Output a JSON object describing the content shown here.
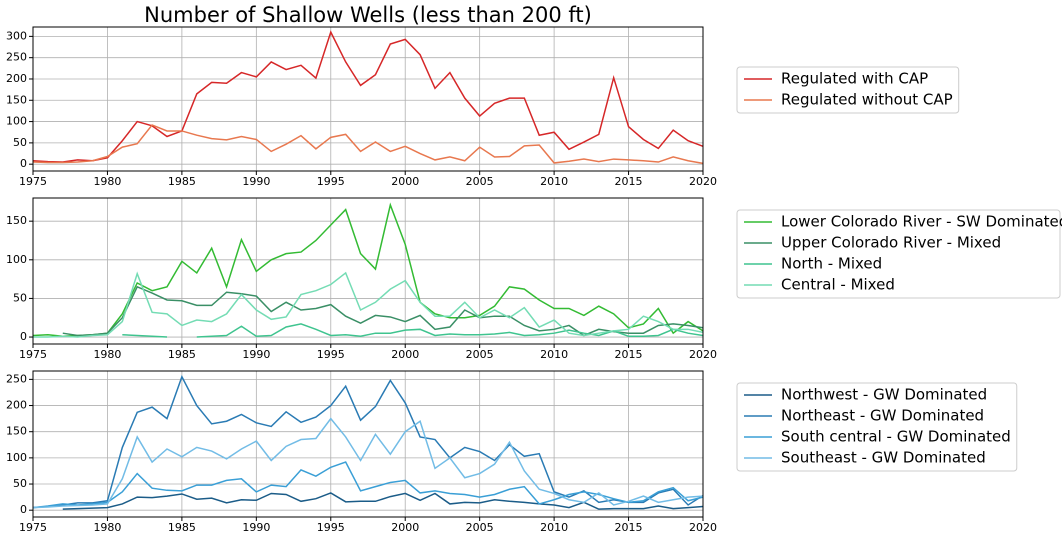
{
  "chart_data": [
    {
      "type": "line",
      "title": "Number of Shallow Wells (less than 200 ft)",
      "legend": "right",
      "grid": true,
      "x": [
        1975,
        1976,
        1977,
        1978,
        1979,
        1980,
        1981,
        1982,
        1983,
        1984,
        1985,
        1986,
        1987,
        1988,
        1989,
        1990,
        1991,
        1992,
        1993,
        1994,
        1995,
        1996,
        1997,
        1998,
        1999,
        2000,
        2001,
        2002,
        2003,
        2004,
        2005,
        2006,
        2007,
        2008,
        2009,
        2010,
        2011,
        2012,
        2013,
        2014,
        2015,
        2016,
        2017,
        2018,
        2019,
        2020
      ],
      "xlim": [
        1975,
        2020
      ],
      "xticks": [
        1975,
        1980,
        1985,
        1990,
        1995,
        2000,
        2005,
        2010,
        2015,
        2020
      ],
      "ylim": [
        -16,
        322
      ],
      "yticks": [
        0,
        50,
        100,
        150,
        200,
        250,
        300
      ],
      "series": [
        {
          "name": "Regulated with CAP",
          "color": "#d62728",
          "values": [
            8,
            6,
            5,
            10,
            8,
            15,
            55,
            100,
            90,
            65,
            78,
            165,
            192,
            190,
            215,
            205,
            240,
            222,
            232,
            202,
            310,
            240,
            185,
            210,
            282,
            293,
            257,
            178,
            215,
            155,
            113,
            143,
            155,
            155,
            68,
            75,
            35,
            52,
            70,
            203,
            88,
            58,
            37,
            80,
            55,
            42
          ]
        },
        {
          "name": "Regulated without CAP",
          "color": "#e8784f",
          "values": [
            5,
            4,
            4,
            5,
            8,
            18,
            40,
            48,
            92,
            78,
            78,
            68,
            60,
            57,
            65,
            58,
            30,
            47,
            67,
            36,
            63,
            70,
            30,
            52,
            30,
            42,
            25,
            10,
            17,
            8,
            40,
            17,
            18,
            43,
            45,
            3,
            7,
            12,
            6,
            12,
            10,
            8,
            5,
            17,
            8,
            2
          ]
        }
      ]
    },
    {
      "type": "line",
      "legend": "right",
      "grid": true,
      "x": [
        1975,
        1976,
        1977,
        1978,
        1979,
        1980,
        1981,
        1982,
        1983,
        1984,
        1985,
        1986,
        1987,
        1988,
        1989,
        1990,
        1991,
        1992,
        1993,
        1994,
        1995,
        1996,
        1997,
        1998,
        1999,
        2000,
        2001,
        2002,
        2003,
        2004,
        2005,
        2006,
        2007,
        2008,
        2009,
        2010,
        2011,
        2012,
        2013,
        2014,
        2015,
        2016,
        2017,
        2018,
        2019,
        2020
      ],
      "xlim": [
        1975,
        2020
      ],
      "xticks": [
        1975,
        1980,
        1985,
        1990,
        1995,
        2000,
        2005,
        2010,
        2015,
        2020
      ],
      "ylim": [
        -9,
        180
      ],
      "yticks": [
        0,
        50,
        100,
        150
      ],
      "series": [
        {
          "name": "Lower Colorado River - SW Dominated",
          "color": "#33bb33",
          "values": [
            2,
            3,
            1,
            2,
            3,
            5,
            30,
            70,
            60,
            65,
            98,
            83,
            115,
            65,
            126,
            85,
            100,
            108,
            110,
            125,
            145,
            165,
            108,
            88,
            171,
            120,
            45,
            30,
            25,
            25,
            28,
            40,
            65,
            62,
            48,
            37,
            37,
            28,
            40,
            30,
            12,
            17,
            37,
            5,
            20,
            8
          ]
        },
        {
          "name": "Upper Colorado River - Mixed",
          "color": "#3a8f66",
          "values": [
            null,
            null,
            5,
            2,
            3,
            5,
            25,
            65,
            57,
            48,
            47,
            41,
            41,
            58,
            56,
            53,
            33,
            45,
            35,
            37,
            42,
            27,
            18,
            28,
            26,
            20,
            28,
            10,
            13,
            35,
            25,
            27,
            27,
            15,
            8,
            10,
            15,
            2,
            10,
            7,
            5,
            5,
            15,
            17,
            15,
            12
          ]
        },
        {
          "name": "North - Mixed",
          "color": "#3fc48f",
          "values": [
            null,
            null,
            null,
            null,
            null,
            null,
            3,
            2,
            1,
            0,
            null,
            0,
            1,
            2,
            14,
            1,
            2,
            13,
            17,
            10,
            2,
            3,
            1,
            5,
            5,
            9,
            10,
            2,
            4,
            3,
            3,
            4,
            6,
            2,
            3,
            5,
            9,
            5,
            2,
            8,
            1,
            1,
            2,
            10,
            5,
            2
          ]
        },
        {
          "name": "Central - Mixed",
          "color": "#74dcb4",
          "values": [
            0,
            0,
            1,
            0,
            2,
            3,
            20,
            82,
            32,
            30,
            15,
            22,
            20,
            30,
            55,
            35,
            23,
            26,
            55,
            60,
            68,
            83,
            35,
            45,
            62,
            73,
            45,
            27,
            27,
            45,
            25,
            35,
            25,
            38,
            13,
            22,
            5,
            2,
            5,
            8,
            10,
            27,
            20,
            10,
            10,
            6
          ]
        }
      ]
    },
    {
      "type": "line",
      "legend": "right",
      "grid": true,
      "x": [
        1975,
        1976,
        1977,
        1978,
        1979,
        1980,
        1981,
        1982,
        1983,
        1984,
        1985,
        1986,
        1987,
        1988,
        1989,
        1990,
        1991,
        1992,
        1993,
        1994,
        1995,
        1996,
        1997,
        1998,
        1999,
        2000,
        2001,
        2002,
        2003,
        2004,
        2005,
        2006,
        2007,
        2008,
        2009,
        2010,
        2011,
        2012,
        2013,
        2014,
        2015,
        2016,
        2017,
        2018,
        2019,
        2020
      ],
      "xlim": [
        1975,
        2020
      ],
      "xticks": [
        1975,
        1980,
        1985,
        1990,
        1995,
        2000,
        2005,
        2010,
        2015,
        2020
      ],
      "ylim": [
        -13,
        266
      ],
      "yticks": [
        0,
        50,
        100,
        150,
        200,
        250
      ],
      "series": [
        {
          "name": "Northwest - GW Dominated",
          "color": "#1b5c88",
          "values": [
            null,
            null,
            2,
            3,
            4,
            5,
            12,
            25,
            24,
            27,
            31,
            21,
            23,
            14,
            20,
            19,
            32,
            30,
            17,
            22,
            33,
            16,
            17,
            17,
            26,
            32,
            19,
            32,
            12,
            15,
            14,
            20,
            17,
            15,
            12,
            10,
            5,
            15,
            2,
            3,
            3,
            3,
            8,
            3,
            5,
            7
          ]
        },
        {
          "name": "Northeast - GW Dominated",
          "color": "#2a7bb4",
          "values": [
            5,
            7,
            10,
            14,
            14,
            18,
            120,
            187,
            197,
            175,
            255,
            200,
            165,
            170,
            183,
            167,
            160,
            188,
            168,
            178,
            200,
            237,
            172,
            198,
            248,
            205,
            140,
            135,
            100,
            120,
            112,
            95,
            125,
            103,
            108,
            35,
            25,
            37,
            15,
            20,
            15,
            15,
            33,
            40,
            10,
            28
          ]
        },
        {
          "name": "South central - GW Dominated",
          "color": "#3a9fd6",
          "values": [
            5,
            8,
            12,
            10,
            12,
            15,
            35,
            70,
            42,
            38,
            37,
            48,
            48,
            57,
            60,
            35,
            48,
            45,
            77,
            65,
            82,
            92,
            37,
            45,
            53,
            57,
            33,
            37,
            32,
            30,
            25,
            30,
            40,
            45,
            12,
            20,
            30,
            35,
            30,
            22,
            15,
            18,
            35,
            43,
            18,
            25
          ]
        },
        {
          "name": "Southeast - GW Dominated",
          "color": "#72bce6",
          "values": [
            5,
            6,
            8,
            9,
            10,
            12,
            60,
            140,
            92,
            117,
            102,
            120,
            113,
            98,
            117,
            132,
            95,
            122,
            135,
            137,
            175,
            140,
            95,
            145,
            107,
            150,
            170,
            80,
            100,
            62,
            70,
            88,
            130,
            75,
            40,
            32,
            20,
            15,
            33,
            10,
            17,
            27,
            15,
            20,
            25,
            27
          ]
        }
      ]
    }
  ]
}
